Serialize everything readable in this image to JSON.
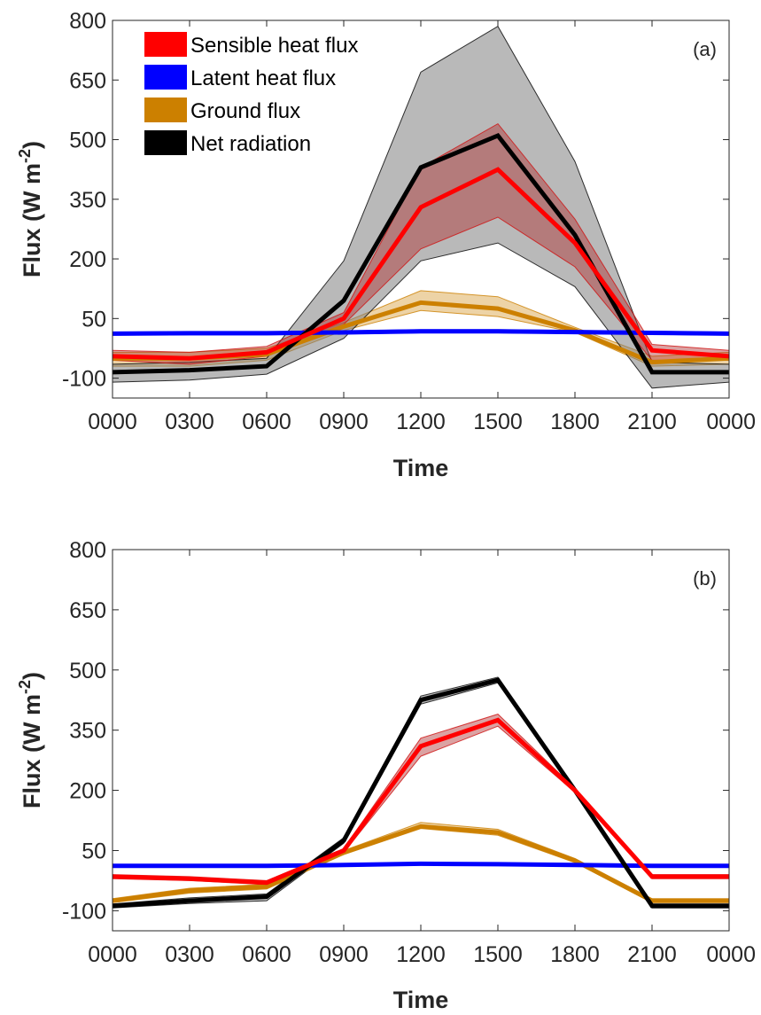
{
  "chart_data": [
    {
      "type": "line",
      "panel_label": "(a)",
      "xlabel": "Time",
      "ylabel_main": "Flux (W m",
      "ylabel_sup": "-2",
      "ylabel_tail": ")",
      "ylim": [
        -150,
        800
      ],
      "yticks": [
        -100,
        50,
        200,
        350,
        500,
        650,
        800
      ],
      "ytick_labels": [
        "-100",
        "50",
        "200",
        "350",
        "500",
        "650",
        "800"
      ],
      "x_categories": [
        "0000",
        "0300",
        "0600",
        "0900",
        "1200",
        "1500",
        "1800",
        "2100",
        "0000"
      ],
      "grid": false,
      "legend_placement": "top-left",
      "legend": [
        {
          "label": "Sensible heat flux",
          "color": "#ff0000"
        },
        {
          "label": "Latent heat flux",
          "color": "#0000ff"
        },
        {
          "label": "Ground flux",
          "color": "#cc8000"
        },
        {
          "label": "Net radiation",
          "color": "#000000"
        }
      ],
      "series": [
        {
          "key": "ground",
          "color": "#cc8000",
          "band_color": "#cc8000",
          "band_opacity": 0.35,
          "edge_color": "#cc8000",
          "mean": [
            -50,
            -50,
            -40,
            30,
            90,
            75,
            20,
            -60,
            -50
          ],
          "lower": [
            -70,
            -70,
            -55,
            20,
            70,
            55,
            15,
            -70,
            -65
          ],
          "upper": [
            -35,
            -35,
            -25,
            40,
            120,
            105,
            28,
            -45,
            -35
          ]
        },
        {
          "key": "latent",
          "color": "#0000ff",
          "band_color": "#0000ff",
          "band_opacity": 0.3,
          "edge_color": "#0000ff",
          "mean": [
            12,
            13,
            13,
            15,
            18,
            18,
            16,
            14,
            12
          ],
          "lower": [
            8,
            9,
            9,
            11,
            14,
            14,
            12,
            10,
            8
          ],
          "upper": [
            16,
            17,
            17,
            19,
            22,
            22,
            20,
            18,
            16
          ]
        },
        {
          "key": "net",
          "color": "#000000",
          "band_color": "#808080",
          "band_opacity": 0.55,
          "edge_color": "#000000",
          "mean": [
            -85,
            -80,
            -70,
            95,
            430,
            510,
            260,
            -85,
            -85
          ],
          "lower": [
            -110,
            -105,
            -90,
            0,
            195,
            240,
            130,
            -125,
            -110
          ],
          "upper": [
            -65,
            -60,
            -50,
            195,
            670,
            785,
            445,
            -60,
            -65
          ]
        },
        {
          "key": "sensible",
          "color": "#ff0000",
          "band_color": "#b03030",
          "band_opacity": 0.45,
          "edge_color": "#d01010",
          "mean": [
            -45,
            -50,
            -35,
            50,
            330,
            425,
            240,
            -30,
            -45
          ],
          "lower": [
            -55,
            -65,
            -45,
            35,
            225,
            305,
            180,
            -55,
            -55
          ],
          "upper": [
            -30,
            -35,
            -20,
            65,
            430,
            540,
            300,
            -15,
            -30
          ]
        }
      ]
    },
    {
      "type": "line",
      "panel_label": "(b)",
      "xlabel": "Time",
      "ylabel_main": "Flux (W m",
      "ylabel_sup": "-2",
      "ylabel_tail": ")",
      "ylim": [
        -150,
        800
      ],
      "yticks": [
        -100,
        50,
        200,
        350,
        500,
        650,
        800
      ],
      "ytick_labels": [
        "-100",
        "50",
        "200",
        "350",
        "500",
        "650",
        "800"
      ],
      "x_categories": [
        "0000",
        "0300",
        "0600",
        "0900",
        "1200",
        "1500",
        "1800",
        "2100",
        "0000"
      ],
      "grid": false,
      "legend": [],
      "series": [
        {
          "key": "ground",
          "color": "#cc8000",
          "band_color": "#cc8000",
          "band_opacity": 0.35,
          "edge_color": "#cc8000",
          "mean": [
            -75,
            -50,
            -40,
            45,
            110,
            95,
            25,
            -75,
            -75
          ],
          "lower": [
            -80,
            -56,
            -46,
            40,
            105,
            88,
            20,
            -80,
            -80
          ],
          "upper": [
            -70,
            -44,
            -34,
            50,
            120,
            103,
            30,
            -70,
            -70
          ]
        },
        {
          "key": "latent",
          "color": "#0000ff",
          "band_color": "#0000ff",
          "band_opacity": 0.3,
          "edge_color": "#0000ff",
          "mean": [
            12,
            12,
            12,
            14,
            17,
            16,
            14,
            12,
            12
          ],
          "lower": [
            10,
            10,
            10,
            12,
            15,
            14,
            12,
            10,
            10
          ],
          "upper": [
            14,
            14,
            14,
            16,
            19,
            18,
            16,
            14,
            14
          ]
        },
        {
          "key": "net",
          "color": "#000000",
          "band_color": "#808080",
          "band_opacity": 0.55,
          "edge_color": "#000000",
          "mean": [
            -88,
            -75,
            -65,
            75,
            425,
            475,
            200,
            -88,
            -88
          ],
          "lower": [
            -93,
            -82,
            -75,
            68,
            415,
            468,
            195,
            -93,
            -93
          ],
          "upper": [
            -83,
            -68,
            -58,
            82,
            435,
            482,
            205,
            -83,
            -83
          ]
        },
        {
          "key": "sensible",
          "color": "#ff0000",
          "band_color": "#b03030",
          "band_opacity": 0.45,
          "edge_color": "#d01010",
          "mean": [
            -15,
            -20,
            -30,
            50,
            310,
            375,
            200,
            -15,
            -15
          ],
          "lower": [
            -20,
            -25,
            -35,
            45,
            285,
            360,
            195,
            -20,
            -20
          ],
          "upper": [
            -10,
            -15,
            -25,
            55,
            330,
            390,
            205,
            -10,
            -10
          ]
        }
      ]
    }
  ]
}
